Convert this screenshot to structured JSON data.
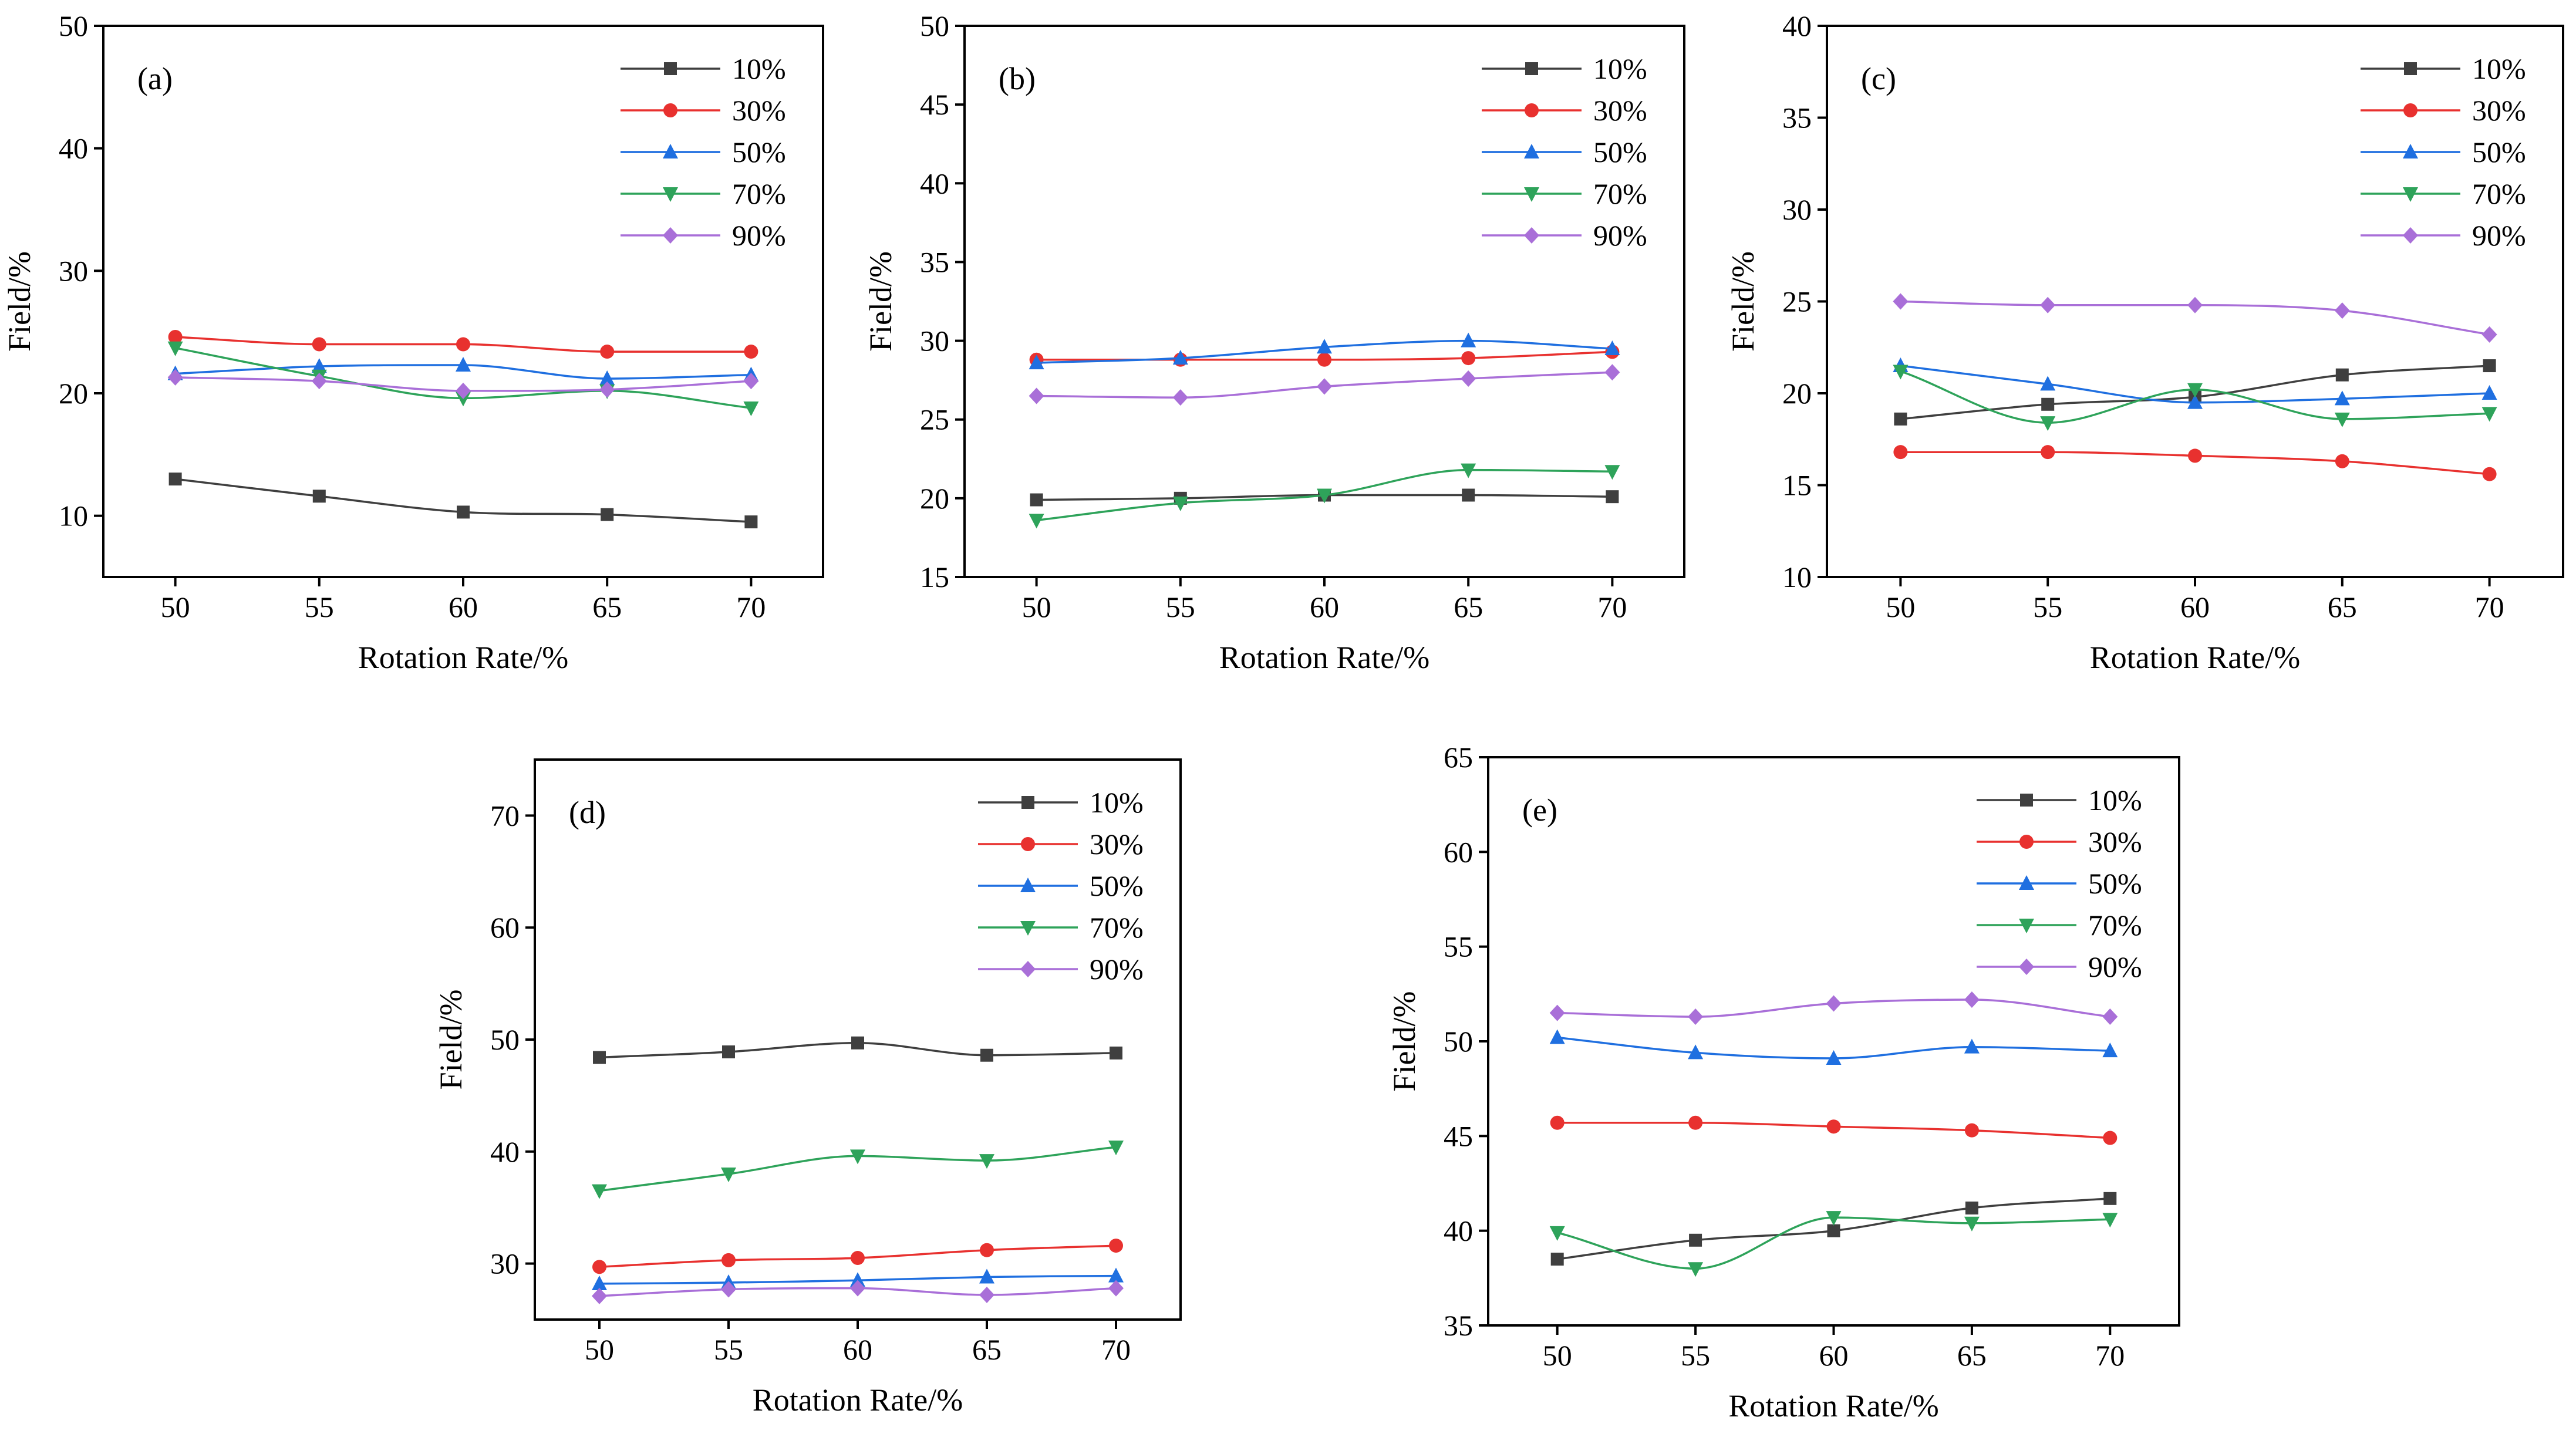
{
  "figure_title": "",
  "colors": {
    "10%": "#3f3f3f",
    "30%": "#e8312f",
    "50%": "#1f6fe0",
    "70%": "#2ea35a",
    "90%": "#a96fd8"
  },
  "legend": [
    "10%",
    "30%",
    "50%",
    "70%",
    "90%"
  ],
  "chart_data": [
    {
      "type": "line",
      "panel": "(a)",
      "title": "",
      "xlabel": "Rotation Rate/%",
      "ylabel": "Field/%",
      "x": [
        50,
        55,
        60,
        65,
        70
      ],
      "xticks": [
        "50",
        "55",
        "60",
        "65",
        "70"
      ],
      "xlim": [
        47.5,
        72.5
      ],
      "ylim": [
        5,
        50
      ],
      "yticks": [
        "10",
        "20",
        "30",
        "40",
        "50"
      ],
      "series": [
        {
          "name": "10%",
          "marker": "square",
          "values": [
            13.0,
            11.6,
            10.3,
            10.1,
            9.5
          ]
        },
        {
          "name": "30%",
          "marker": "circle",
          "values": [
            24.6,
            24.0,
            24.0,
            23.4,
            23.4
          ]
        },
        {
          "name": "50%",
          "marker": "triangle-up",
          "values": [
            21.6,
            22.2,
            22.3,
            21.2,
            21.5
          ]
        },
        {
          "name": "70%",
          "marker": "triangle-down",
          "values": [
            23.7,
            21.4,
            19.6,
            20.2,
            18.8
          ]
        },
        {
          "name": "90%",
          "marker": "diamond",
          "values": [
            21.3,
            21.0,
            20.2,
            20.3,
            21.0
          ]
        }
      ]
    },
    {
      "type": "line",
      "panel": "(b)",
      "title": "",
      "xlabel": "Rotation Rate/%",
      "ylabel": "Field/%",
      "x": [
        50,
        55,
        60,
        65,
        70
      ],
      "xticks": [
        "50",
        "55",
        "60",
        "65",
        "70"
      ],
      "xlim": [
        47.5,
        72.5
      ],
      "ylim": [
        15,
        50
      ],
      "yticks": [
        "15",
        "20",
        "25",
        "30",
        "35",
        "40",
        "45",
        "50"
      ],
      "series": [
        {
          "name": "10%",
          "marker": "square",
          "values": [
            19.9,
            20.0,
            20.2,
            20.2,
            20.1
          ]
        },
        {
          "name": "30%",
          "marker": "circle",
          "values": [
            28.8,
            28.8,
            28.8,
            28.9,
            29.3
          ]
        },
        {
          "name": "50%",
          "marker": "triangle-up",
          "values": [
            28.6,
            28.9,
            29.6,
            30.0,
            29.5
          ]
        },
        {
          "name": "70%",
          "marker": "triangle-down",
          "values": [
            18.6,
            19.7,
            20.2,
            21.8,
            21.7
          ]
        },
        {
          "name": "90%",
          "marker": "diamond",
          "values": [
            26.5,
            26.4,
            27.1,
            27.6,
            28.0
          ]
        }
      ]
    },
    {
      "type": "line",
      "panel": "(c)",
      "title": "",
      "xlabel": "Rotation Rate/%",
      "ylabel": "Field/%",
      "x": [
        50,
        55,
        60,
        65,
        70
      ],
      "xticks": [
        "50",
        "55",
        "60",
        "65",
        "70"
      ],
      "xlim": [
        47.5,
        72.5
      ],
      "ylim": [
        10,
        40
      ],
      "yticks": [
        "10",
        "15",
        "20",
        "25",
        "30",
        "35",
        "40"
      ],
      "series": [
        {
          "name": "10%",
          "marker": "square",
          "values": [
            18.6,
            19.4,
            19.8,
            21.0,
            21.5
          ]
        },
        {
          "name": "30%",
          "marker": "circle",
          "values": [
            16.8,
            16.8,
            16.6,
            16.3,
            15.6
          ]
        },
        {
          "name": "50%",
          "marker": "triangle-up",
          "values": [
            21.5,
            20.5,
            19.5,
            19.7,
            20.0
          ]
        },
        {
          "name": "70%",
          "marker": "triangle-down",
          "values": [
            21.2,
            18.4,
            20.2,
            18.6,
            18.9
          ]
        },
        {
          "name": "90%",
          "marker": "diamond",
          "values": [
            25.0,
            24.8,
            24.8,
            24.5,
            23.2
          ]
        }
      ]
    },
    {
      "type": "line",
      "panel": "(d)",
      "title": "",
      "xlabel": "Rotation Rate/%",
      "ylabel": "Field/%",
      "x": [
        50,
        55,
        60,
        65,
        70
      ],
      "xticks": [
        "50",
        "55",
        "60",
        "65",
        "70"
      ],
      "xlim": [
        47.5,
        72.5
      ],
      "ylim": [
        25,
        75
      ],
      "yticks": [
        "30",
        "40",
        "50",
        "60",
        "70"
      ],
      "series": [
        {
          "name": "10%",
          "marker": "square",
          "values": [
            48.4,
            48.9,
            49.7,
            48.6,
            48.8
          ]
        },
        {
          "name": "30%",
          "marker": "circle",
          "values": [
            29.7,
            30.3,
            30.5,
            31.2,
            31.6
          ]
        },
        {
          "name": "50%",
          "marker": "triangle-up",
          "values": [
            28.2,
            28.3,
            28.5,
            28.8,
            28.9
          ]
        },
        {
          "name": "70%",
          "marker": "triangle-down",
          "values": [
            36.5,
            38.0,
            39.6,
            39.2,
            40.4
          ]
        },
        {
          "name": "90%",
          "marker": "diamond",
          "values": [
            27.1,
            27.7,
            27.8,
            27.2,
            27.8
          ]
        }
      ]
    },
    {
      "type": "line",
      "panel": "(e)",
      "title": "",
      "xlabel": "Rotation Rate/%",
      "ylabel": "Field/%",
      "x": [
        50,
        55,
        60,
        65,
        70
      ],
      "xticks": [
        "50",
        "55",
        "60",
        "65",
        "70"
      ],
      "xlim": [
        47.5,
        72.5
      ],
      "ylim": [
        35,
        65
      ],
      "yticks": [
        "35",
        "40",
        "45",
        "50",
        "55",
        "60",
        "65"
      ],
      "series": [
        {
          "name": "10%",
          "marker": "square",
          "values": [
            38.5,
            39.5,
            40.0,
            41.2,
            41.7
          ]
        },
        {
          "name": "30%",
          "marker": "circle",
          "values": [
            45.7,
            45.7,
            45.5,
            45.3,
            44.9
          ]
        },
        {
          "name": "50%",
          "marker": "triangle-up",
          "values": [
            50.2,
            49.4,
            49.1,
            49.7,
            49.5
          ]
        },
        {
          "name": "70%",
          "marker": "triangle-down",
          "values": [
            39.9,
            38.0,
            40.7,
            40.4,
            40.6
          ]
        },
        {
          "name": "90%",
          "marker": "diamond",
          "values": [
            51.5,
            51.3,
            52.0,
            52.2,
            51.3
          ]
        }
      ]
    }
  ]
}
